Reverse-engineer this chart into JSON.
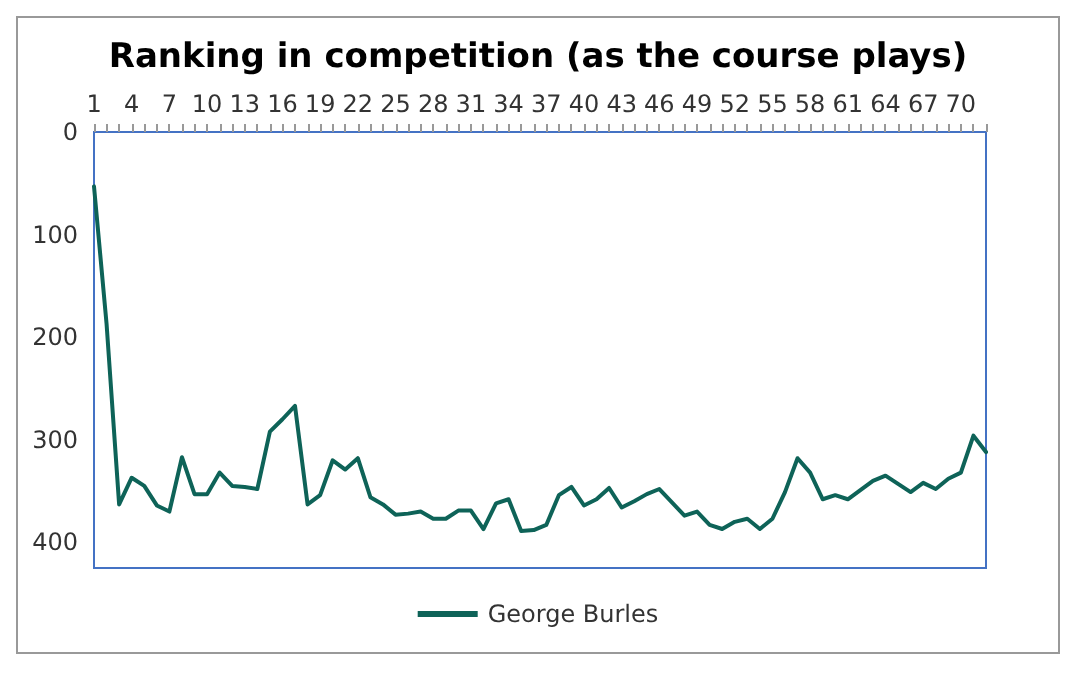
{
  "chart_data": {
    "type": "line",
    "title": "Ranking in competition (as the course plays)",
    "categories": [
      "1",
      null,
      null,
      "4",
      null,
      null,
      "7",
      null,
      null,
      "10",
      null,
      null,
      "13",
      null,
      null,
      "16",
      null,
      null,
      "19",
      null,
      null,
      "22",
      null,
      null,
      "25",
      null,
      null,
      "28",
      null,
      null,
      "31",
      null,
      null,
      "34",
      null,
      null,
      "37",
      null,
      null,
      "40",
      null,
      null,
      "43",
      null,
      null,
      "46",
      null,
      null,
      "49",
      null,
      null,
      "52",
      null,
      null,
      "55",
      null,
      null,
      "58",
      null,
      null,
      "61",
      null,
      null,
      "64",
      null,
      null,
      "67",
      null,
      null,
      "70",
      null,
      null
    ],
    "series": [
      {
        "name": "George Burles",
        "color": "#0e6358",
        "values": [
          53,
          187,
          363,
          337,
          345,
          364,
          370,
          317,
          353,
          353,
          332,
          345,
          346,
          348,
          292,
          280,
          267,
          363,
          354,
          320,
          329,
          318,
          356,
          363,
          373,
          372,
          370,
          377,
          377,
          369,
          369,
          387,
          362,
          358,
          389,
          388,
          383,
          354,
          346,
          364,
          358,
          347,
          366,
          360,
          353,
          348,
          361,
          374,
          370,
          383,
          387,
          380,
          377,
          387,
          377,
          351,
          318,
          332,
          358,
          354,
          358,
          349,
          340,
          335,
          343,
          351,
          342,
          348,
          338,
          332,
          296,
          312
        ]
      }
    ],
    "ylim": [
      425,
      0
    ],
    "yticks": [
      0,
      100,
      200,
      300,
      400
    ],
    "grid": false,
    "legend": "bottom",
    "marker": "none",
    "line_style": "solid"
  }
}
